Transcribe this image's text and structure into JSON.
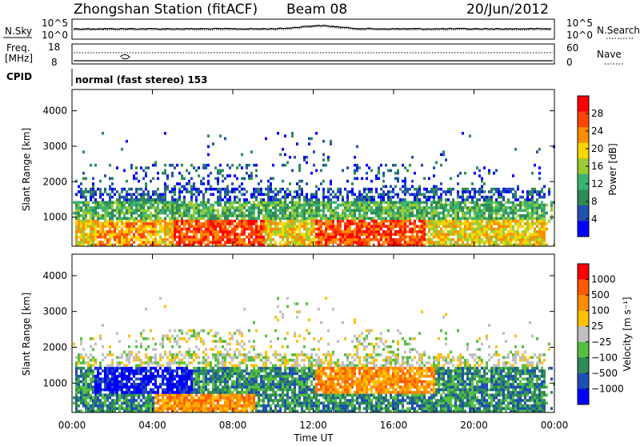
{
  "header": {
    "station": "Zhongshan Station (fitACF)",
    "beam": "Beam 08",
    "date": "20/Jun/2012"
  },
  "nsky_panel": {
    "left_label": "N.Sky",
    "left_ticks": [
      "10^5",
      "10^0"
    ],
    "right_label": "N.Search",
    "right_ticks": [
      "10^5",
      "10^0"
    ]
  },
  "freq_panel": {
    "left_label_top": "Freq.",
    "left_label_unit": "[MHz]",
    "left_ticks": [
      "18",
      "8"
    ],
    "right_label": "Nave",
    "right_ticks": [
      "60",
      "0"
    ]
  },
  "cpid": {
    "label": "CPID",
    "mode": "normal (fast stereo) 153"
  },
  "colors": {
    "power_scale": [
      "#0000ff",
      "#2050b0",
      "#2e8b57",
      "#3cb371",
      "#9acd32",
      "#ffd700",
      "#ff8c00",
      "#ff4500",
      "#ff0000"
    ],
    "velocity_scale": [
      "#0000ff",
      "#1e4fb4",
      "#2e8b57",
      "#55c040",
      "#c0c0c0",
      "#ffc000",
      "#ff8c00",
      "#ff5a00",
      "#ff0000"
    ]
  },
  "chart_data": [
    {
      "type": "heatmap",
      "name": "power",
      "ylabel": "Slant Range [km]",
      "yticks": [
        "4000",
        "3000",
        "2000",
        "1000"
      ],
      "ylim": [
        180,
        4600
      ],
      "xlim": [
        0,
        24
      ],
      "colorbar_label": "Power [dB]",
      "colorbar_ticks": [
        "28",
        "24",
        "20",
        "16",
        "12",
        "8",
        "4"
      ],
      "colorbar_range": [
        0,
        32
      ]
    },
    {
      "type": "heatmap",
      "name": "velocity",
      "ylabel": "Slant Range [km]",
      "yticks": [
        "4000",
        "3000",
        "2000",
        "1000"
      ],
      "ylim": [
        180,
        4600
      ],
      "xlim": [
        0,
        24
      ],
      "colorbar_label": "Velocity [m s⁻¹]",
      "colorbar_ticks": [
        "1000",
        "500",
        "100",
        "25",
        "−25",
        "−100",
        "−500",
        "−1000"
      ]
    }
  ],
  "x_axis": {
    "label": "Time UT",
    "ticks": [
      "00:00",
      "04:00",
      "08:00",
      "12:00",
      "16:00",
      "20:00",
      "00:00"
    ]
  }
}
